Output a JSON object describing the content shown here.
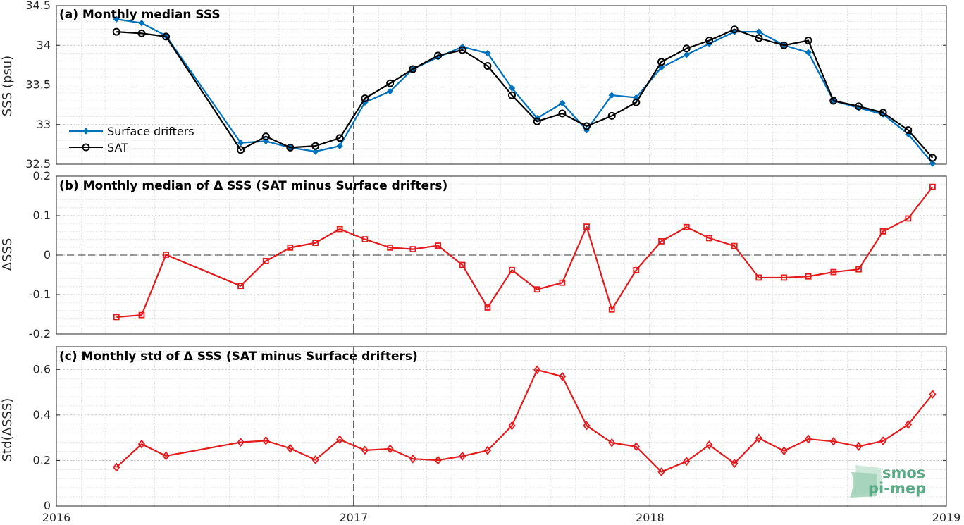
{
  "chart_data": [
    {
      "type": "line",
      "title": "(a) Monthly median SSS",
      "ylabel": "SSS (psu)",
      "xlim": [
        "2016-01-01",
        "2019-01-01"
      ],
      "ylim": [
        32.5,
        34.5
      ],
      "yticks": [
        "32.5",
        "33",
        "33.5",
        "34",
        "34.5"
      ],
      "grid": true,
      "legend": "left",
      "x": [
        "2016-03",
        "2016-04",
        "2016-05",
        "2016-08",
        "2016-09",
        "2016-10",
        "2016-11",
        "2016-12",
        "2017-01",
        "2017-02",
        "2017-03",
        "2017-04",
        "2017-05",
        "2017-06",
        "2017-07",
        "2017-08",
        "2017-09",
        "2017-10",
        "2017-11",
        "2017-12",
        "2018-01",
        "2018-02",
        "2018-03",
        "2018-04",
        "2018-05",
        "2018-06",
        "2018-07",
        "2018-08",
        "2018-09",
        "2018-10",
        "2018-11",
        "2018-12"
      ],
      "series": [
        {
          "name": "Surface drifters",
          "color": "#0072bd",
          "marker": "diamond",
          "values": [
            34.33,
            34.28,
            34.12,
            32.77,
            32.79,
            32.71,
            32.66,
            32.73,
            33.28,
            33.42,
            33.7,
            33.85,
            33.98,
            33.9,
            33.46,
            33.08,
            33.27,
            32.93,
            33.37,
            33.34,
            33.72,
            33.88,
            34.02,
            34.17,
            34.17,
            34.0,
            33.91,
            33.3,
            33.21,
            33.13,
            32.88,
            32.51
          ]
        },
        {
          "name": "SAT",
          "color": "#000000",
          "marker": "circle",
          "values": [
            34.17,
            34.15,
            34.11,
            32.68,
            32.85,
            32.71,
            32.73,
            32.83,
            33.33,
            33.52,
            33.7,
            33.87,
            33.94,
            33.74,
            33.37,
            33.04,
            33.14,
            32.98,
            33.11,
            33.28,
            33.79,
            33.96,
            34.06,
            34.2,
            34.09,
            34.0,
            34.06,
            33.3,
            33.23,
            33.15,
            32.93,
            32.58
          ]
        }
      ]
    },
    {
      "type": "line",
      "title": "(b) Monthly median of Δ SSS (SAT minus Surface drifters)",
      "ylabel": "ΔSSS",
      "xlim": [
        "2016-01-01",
        "2019-01-01"
      ],
      "ylim": [
        -0.2,
        0.2
      ],
      "yticks": [
        "-0.2",
        "-0.1",
        "0",
        "0.1",
        "0.2"
      ],
      "grid": true,
      "zero_line": true,
      "x": [
        "2016-03",
        "2016-04",
        "2016-05",
        "2016-08",
        "2016-09",
        "2016-10",
        "2016-11",
        "2016-12",
        "2017-01",
        "2017-02",
        "2017-03",
        "2017-04",
        "2017-05",
        "2017-06",
        "2017-07",
        "2017-08",
        "2017-09",
        "2017-10",
        "2017-11",
        "2017-12",
        "2018-01",
        "2018-02",
        "2018-03",
        "2018-04",
        "2018-05",
        "2018-06",
        "2018-07",
        "2018-08",
        "2018-09",
        "2018-10",
        "2018-11",
        "2018-12"
      ],
      "series": [
        {
          "color": "#e41a1c",
          "marker": "square",
          "values": [
            -0.157,
            -0.152,
            0.001,
            -0.078,
            -0.015,
            0.019,
            0.031,
            0.066,
            0.04,
            0.019,
            0.015,
            0.024,
            -0.025,
            -0.133,
            -0.038,
            -0.087,
            -0.07,
            0.072,
            -0.138,
            -0.038,
            0.035,
            0.071,
            0.043,
            0.023,
            -0.057,
            -0.057,
            -0.054,
            -0.043,
            -0.036,
            0.06,
            0.093,
            0.173
          ]
        }
      ]
    },
    {
      "type": "line",
      "title": "(c) Monthly std of Δ SSS (SAT minus Surface drifters)",
      "ylabel": "Std(ΔSSS)",
      "xlim": [
        "2016-01-01",
        "2019-01-01"
      ],
      "ylim": [
        0,
        0.7
      ],
      "yticks": [
        "0",
        "0.2",
        "0.4",
        "0.6"
      ],
      "xticks": [
        "2016",
        "2017",
        "2018",
        "2019"
      ],
      "grid": true,
      "x": [
        "2016-03",
        "2016-04",
        "2016-05",
        "2016-08",
        "2016-09",
        "2016-10",
        "2016-11",
        "2016-12",
        "2017-01",
        "2017-02",
        "2017-03",
        "2017-04",
        "2017-05",
        "2017-06",
        "2017-07",
        "2017-08",
        "2017-09",
        "2017-10",
        "2017-11",
        "2017-12",
        "2018-01",
        "2018-02",
        "2018-03",
        "2018-04",
        "2018-05",
        "2018-06",
        "2018-07",
        "2018-08",
        "2018-09",
        "2018-10",
        "2018-11",
        "2018-12"
      ],
      "series": [
        {
          "color": "#e41a1c",
          "marker": "diamond",
          "values": [
            0.17,
            0.272,
            0.22,
            0.28,
            0.287,
            0.253,
            0.203,
            0.292,
            0.245,
            0.251,
            0.207,
            0.201,
            0.219,
            0.244,
            0.353,
            0.598,
            0.569,
            0.353,
            0.278,
            0.261,
            0.15,
            0.196,
            0.268,
            0.187,
            0.298,
            0.242,
            0.294,
            0.284,
            0.262,
            0.286,
            0.358,
            0.491
          ]
        }
      ]
    }
  ],
  "logo": {
    "line1": "smos",
    "line2": "pi-mep",
    "color": "#5aaa86"
  }
}
